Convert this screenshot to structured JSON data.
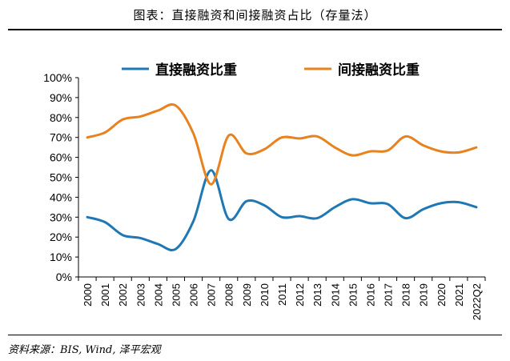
{
  "header": {
    "title": "图表：直接融资和间接融资占比（存量法）"
  },
  "footer": {
    "source": "资料来源：BIS, Wind, 泽平宏观"
  },
  "chart_data": {
    "type": "line",
    "title": "",
    "xlabel": "",
    "ylabel": "",
    "x": [
      "2000",
      "2001",
      "2002",
      "2003",
      "2004",
      "2005",
      "2006",
      "2007",
      "2008",
      "2009",
      "2010",
      "2011",
      "2012",
      "2013",
      "2014",
      "2015",
      "2016",
      "2017",
      "2018",
      "2019",
      "2020",
      "2021",
      "2022Q2"
    ],
    "y_ticks": [
      "0%",
      "10%",
      "20%",
      "30%",
      "40%",
      "50%",
      "60%",
      "70%",
      "80%",
      "90%",
      "100%"
    ],
    "ylim": [
      0,
      100
    ],
    "y_unit": "%",
    "grid": false,
    "legend_position": "top",
    "series": [
      {
        "name": "直接融资比重",
        "color": "#1f77b4",
        "values": [
          30,
          27.5,
          21,
          19.5,
          16.5,
          14,
          28,
          53.5,
          29,
          38,
          36,
          30,
          30.5,
          29.5,
          35,
          39,
          37,
          36.5,
          29.5,
          34,
          37,
          37.5,
          35
        ]
      },
      {
        "name": "间接融资比重",
        "color": "#e8821e",
        "values": [
          70,
          72.5,
          79,
          80.5,
          83.5,
          86,
          72,
          46.5,
          71,
          62,
          64,
          70,
          69.5,
          70.5,
          65,
          61,
          63,
          63.5,
          70.5,
          66,
          63,
          62.5,
          65
        ]
      }
    ]
  }
}
